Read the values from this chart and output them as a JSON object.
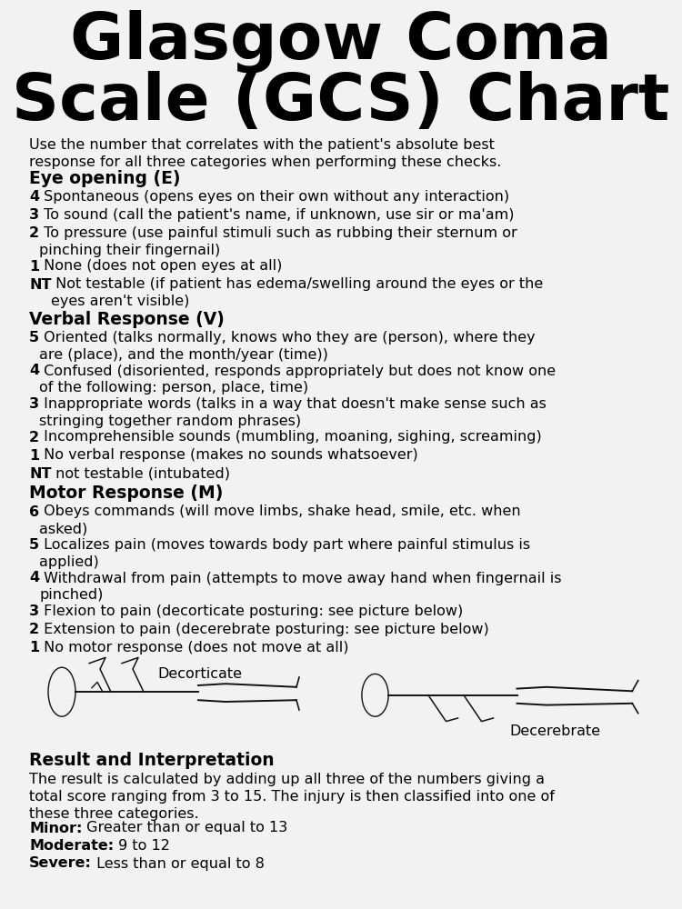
{
  "title_line1": "Glasgow Coma",
  "title_line2": "Scale (GCS) Chart",
  "bg_color": "#f2f2f2",
  "text_color": "#000000",
  "title_fontsize": 52,
  "body_fontsize": 11.5,
  "heading_fontsize": 13.5,
  "intro": "Use the number that correlates with the patient's absolute best\nresponse for all three categories when performing these checks.",
  "sections": [
    {
      "heading": "Eye opening (E)",
      "items": [
        {
          "num": "4",
          "text": " Spontaneous (opens eyes on their own without any interaction)"
        },
        {
          "num": "3",
          "text": " To sound (call the patient's name, if unknown, use sir or ma'am)"
        },
        {
          "num": "2",
          "text": " To pressure (use painful stimuli such as rubbing their sternum or\npinching their fingernail)"
        },
        {
          "num": "1",
          "text": " None (does not open eyes at all)"
        },
        {
          "num": "NT",
          "text": " Not testable (if patient has edema/swelling around the eyes or the\neyes aren't visible)"
        }
      ]
    },
    {
      "heading": "Verbal Response (V)",
      "items": [
        {
          "num": "5",
          "text": " Oriented (talks normally, knows who they are (person), where they\nare (place), and the month/year (time))"
        },
        {
          "num": "4",
          "text": " Confused (disoriented, responds appropriately but does not know one\nof the following: person, place, time)"
        },
        {
          "num": "3",
          "text": " Inappropriate words (talks in a way that doesn't make sense such as\nstringing together random phrases)"
        },
        {
          "num": "2",
          "text": " Incomprehensible sounds (mumbling, moaning, sighing, screaming)"
        },
        {
          "num": "1",
          "text": " No verbal response (makes no sounds whatsoever)"
        },
        {
          "num": "NT",
          "text": " not testable (intubated)"
        }
      ]
    },
    {
      "heading": "Motor Response (M)",
      "items": [
        {
          "num": "6",
          "text": " Obeys commands (will move limbs, shake head, smile, etc. when\nasked)"
        },
        {
          "num": "5",
          "text": " Localizes pain (moves towards body part where painful stimulus is\napplied)"
        },
        {
          "num": "4",
          "text": " Withdrawal from pain (attempts to move away hand when fingernail is\npinched)"
        },
        {
          "num": "3",
          "text": " Flexion to pain (decorticate posturing: see picture below)"
        },
        {
          "num": "2",
          "text": " Extension to pain (decerebrate posturing: see picture below)"
        },
        {
          "num": "1",
          "text": " No motor response (does not move at all)"
        }
      ]
    }
  ],
  "result_heading": "Result and Interpretation",
  "result_text": "The result is calculated by adding up all three of the numbers giving a\ntotal score ranging from 3 to 15. The injury is then classified into one of\nthese three categories.",
  "result_items": [
    {
      "bold": "Minor:",
      "text": " Greater than or equal to 13"
    },
    {
      "bold": "Moderate:",
      "text": " 9 to 12"
    },
    {
      "bold": "Severe:",
      "text": " Less than or equal to 8"
    }
  ],
  "decorticate_label": "Decorticate",
  "decerebrate_label": "Decerebrate"
}
